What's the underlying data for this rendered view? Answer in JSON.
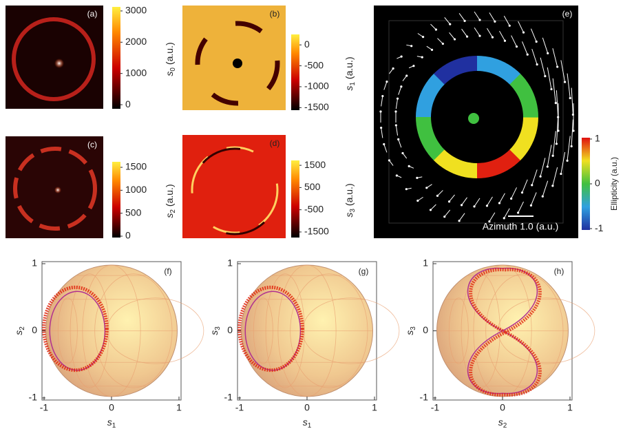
{
  "panels": [
    {
      "label": "(a)",
      "colorbar": {
        "symbol": "s",
        "subscript": "0",
        "unit": "(a.u.)",
        "lim": [
          -130,
          3130
        ],
        "ticks": [
          0,
          1000,
          2000,
          3000
        ]
      }
    },
    {
      "label": "(b)",
      "colorbar": {
        "symbol": "s",
        "subscript": "1",
        "unit": "(a.u.)",
        "lim": [
          -1560,
          250
        ],
        "ticks": [
          -1500,
          -1000,
          -500,
          0
        ]
      }
    },
    {
      "label": "(c)",
      "colorbar": {
        "symbol": "s",
        "subscript": "2",
        "unit": "(a.u.)",
        "lim": [
          -30,
          1620
        ],
        "ticks": [
          0,
          500,
          1000,
          1500
        ]
      }
    },
    {
      "label": "(d)",
      "colorbar": {
        "symbol": "s",
        "subscript": "3",
        "unit": "(a.u.)",
        "lim": [
          -1750,
          1720
        ],
        "ticks": [
          -1500,
          -500,
          500,
          1500
        ]
      }
    },
    {
      "label": "(e)",
      "scale_bar": "Azimuth 1.0 (a.u.)",
      "colorbar": {
        "title": "Ellipticity (a.u.)",
        "lim": [
          -1.03,
          1.03
        ],
        "ticks": [
          -1,
          0,
          1
        ]
      }
    },
    {
      "label": "(f)",
      "axes": {
        "xsymbol": "s",
        "xsub": "1",
        "ysymbol": "s",
        "ysub": "2",
        "xlim": [
          -1,
          1
        ],
        "ylim": [
          -1,
          1
        ],
        "xticks": [
          -1,
          0,
          1
        ],
        "yticks": [
          -1,
          0,
          1
        ]
      }
    },
    {
      "label": "(g)",
      "axes": {
        "xsymbol": "s",
        "xsub": "1",
        "ysymbol": "s",
        "ysub": "3",
        "xlim": [
          -1,
          1
        ],
        "ylim": [
          -1,
          1
        ],
        "xticks": [
          -1,
          0,
          1
        ],
        "yticks": [
          -1,
          0,
          1
        ]
      }
    },
    {
      "label": "(h)",
      "axes": {
        "xsymbol": "s",
        "xsub": "2",
        "ysymbol": "s",
        "ysub": "3",
        "xlim": [
          -1,
          1
        ],
        "ylim": [
          -1,
          1
        ],
        "xticks": [
          -1,
          0,
          1
        ],
        "yticks": [
          -1,
          0,
          1
        ]
      }
    }
  ]
}
